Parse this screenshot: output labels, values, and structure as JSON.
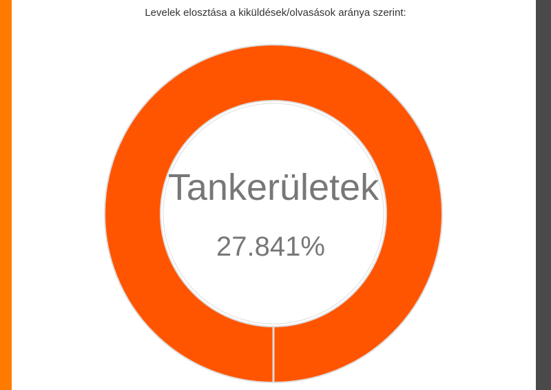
{
  "chart_data": {
    "type": "pie",
    "title": "Levelek elosztása a kiküldések/olvasások aránya szerint:",
    "slices": [
      {
        "label": "Tankerületek",
        "value": 27.841,
        "display": "27.841%",
        "color": "#ff5500"
      }
    ],
    "center": {
      "label": "Tankerületek",
      "value": "27.841%"
    },
    "ring_color": "#ff5500"
  },
  "colors": {
    "left_strip": "#ff7b00",
    "right_strip": "#4a4a4a"
  }
}
